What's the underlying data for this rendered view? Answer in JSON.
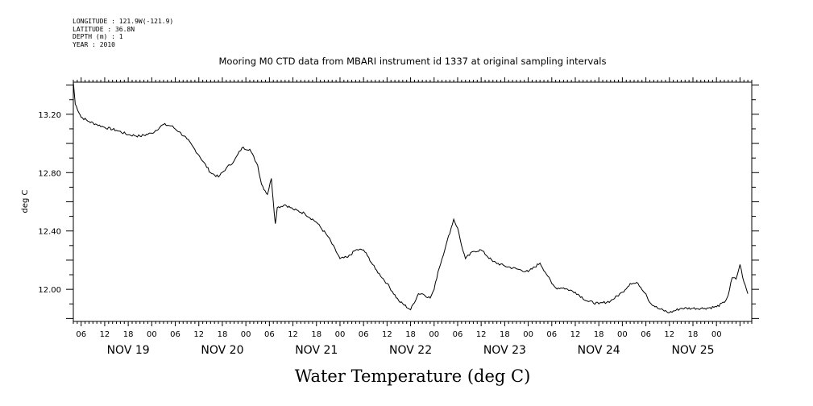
{
  "header": {
    "longitude": "LONGITUDE : 121.9W(-121.9)",
    "latitude": "LATITUDE : 36.8N",
    "depth": "DEPTH (m) : 1",
    "year": "YEAR : 2010"
  },
  "chart_data": {
    "type": "line",
    "subtitle": "Mooring M0 CTD data from MBARI instrument id 1337 at original sampling intervals",
    "title": "Water Temperature (deg C)",
    "ylabel": "deg C",
    "xlabel": "",
    "ylim": [
      11.78,
      13.42
    ],
    "xlim": [
      "2010-11-18 22:00",
      "2010-11-26 03:00"
    ],
    "y_ticks": [
      "13.20",
      "12.80",
      "12.40",
      "12.00"
    ],
    "hour_tick_labels": [
      "06",
      "12",
      "18",
      "00",
      "06",
      "12",
      "18",
      "00",
      "06",
      "12",
      "18",
      "00",
      "06",
      "12",
      "18",
      "00",
      "06",
      "12",
      "18",
      "00",
      "06",
      "12",
      "18",
      "00",
      "06",
      "12",
      "18",
      "00"
    ],
    "day_labels": [
      "NOV 19",
      "NOV 20",
      "NOV 21",
      "NOV 22",
      "NOV 23",
      "NOV 24",
      "NOV 25"
    ],
    "series": [
      {
        "x": [
          "2010-11-18 22:00",
          "2010-11-18 22:30",
          "2010-11-19 00:00",
          "2010-11-19 02:00",
          "2010-11-19 04:00",
          "2010-11-19 06:00",
          "2010-11-19 09:00",
          "2010-11-19 12:00",
          "2010-11-19 15:00",
          "2010-11-19 18:00",
          "2010-11-19 21:00",
          "2010-11-19 23:00",
          "2010-11-20 01:00",
          "2010-11-20 03:00",
          "2010-11-20 06:00",
          "2010-11-20 09:00",
          "2010-11-20 11:00",
          "2010-11-20 13:00",
          "2010-11-20 15:00",
          "2010-11-20 17:00",
          "2010-11-20 19:00",
          "2010-11-20 21:00",
          "2010-11-20 22:00",
          "2010-11-20 23:30",
          "2010-11-21 00:30",
          "2010-11-21 01:00",
          "2010-11-21 01:30",
          "2010-11-21 02:00",
          "2010-11-21 04:00",
          "2010-11-21 06:00",
          "2010-11-21 09:00",
          "2010-11-21 12:00",
          "2010-11-21 15:00",
          "2010-11-21 18:00",
          "2010-11-21 20:00",
          "2010-11-21 22:00",
          "2010-11-22 00:00",
          "2010-11-22 01:00",
          "2010-11-22 03:00",
          "2010-11-22 06:00",
          "2010-11-22 09:00",
          "2010-11-22 12:00",
          "2010-11-22 14:00",
          "2010-11-22 15:00",
          "2010-11-22 17:00",
          "2010-11-22 18:00",
          "2010-11-22 19:00",
          "2010-11-22 21:00",
          "2010-11-22 23:00",
          "2010-11-23 00:00",
          "2010-11-23 01:00",
          "2010-11-23 02:00",
          "2010-11-23 04:00",
          "2010-11-23 06:00",
          "2010-11-23 09:00",
          "2010-11-23 12:00",
          "2010-11-23 15:00",
          "2010-11-23 18:00",
          "2010-11-23 21:00",
          "2010-11-23 23:00",
          "2010-11-24 00:00",
          "2010-11-24 01:00",
          "2010-11-24 03:00",
          "2010-11-24 06:00",
          "2010-11-24 09:00",
          "2010-11-24 12:00",
          "2010-11-24 15:00",
          "2010-11-24 18:00",
          "2010-11-24 20:00",
          "2010-11-24 22:00",
          "2010-11-25 00:00",
          "2010-11-25 01:00",
          "2010-11-25 03:00",
          "2010-11-25 06:00",
          "2010-11-25 09:00",
          "2010-11-25 12:00",
          "2010-11-25 15:00",
          "2010-11-25 18:00",
          "2010-11-25 20:00",
          "2010-11-25 21:00",
          "2010-11-25 22:00",
          "2010-11-25 23:00",
          "2010-11-26 00:00",
          "2010-11-26 01:00",
          "2010-11-26 02:00"
        ],
        "y": [
          13.42,
          13.27,
          13.18,
          13.15,
          13.13,
          13.11,
          13.09,
          13.06,
          13.05,
          13.07,
          13.13,
          13.12,
          13.08,
          13.03,
          12.92,
          12.8,
          12.77,
          12.83,
          12.88,
          12.97,
          12.96,
          12.85,
          12.72,
          12.65,
          12.76,
          12.6,
          12.45,
          12.56,
          12.58,
          12.55,
          12.52,
          12.46,
          12.36,
          12.21,
          12.22,
          12.27,
          12.27,
          12.23,
          12.14,
          12.04,
          11.92,
          11.86,
          11.97,
          11.97,
          11.94,
          12.0,
          12.12,
          12.3,
          12.48,
          12.42,
          12.3,
          12.21,
          12.26,
          12.27,
          12.19,
          12.16,
          12.14,
          12.12,
          12.18,
          12.09,
          12.04,
          12.01,
          12.01,
          11.98,
          11.92,
          11.9,
          11.92,
          11.98,
          12.04,
          12.04,
          11.97,
          11.91,
          11.87,
          11.84,
          11.87,
          11.87,
          11.87,
          11.88,
          11.91,
          11.96,
          12.08,
          12.07,
          12.17,
          12.05,
          11.97
        ]
      }
    ],
    "grid": false,
    "legend": "none"
  }
}
